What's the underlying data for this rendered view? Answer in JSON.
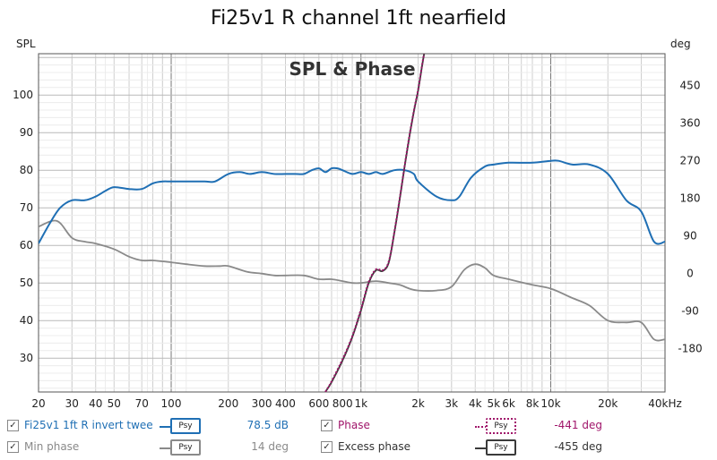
{
  "title": "Fi25v1 R channel 1ft nearfield",
  "chart_data": {
    "type": "line",
    "title": "Fi25v1 R channel 1ft nearfield",
    "subtitle": "SPL & Phase",
    "xscale": "log",
    "xlim": [
      20,
      40000
    ],
    "ylim": [
      21,
      111
    ],
    "y2lim": [
      -283.5,
      526.5
    ],
    "ylabel": "SPL",
    "y2label": "deg",
    "grid": true,
    "x_ticks": [
      {
        "v": 20,
        "label": "20"
      },
      {
        "v": 30,
        "label": "30"
      },
      {
        "v": 40,
        "label": "40"
      },
      {
        "v": 50,
        "label": "50"
      },
      {
        "v": 70,
        "label": "70"
      },
      {
        "v": 100,
        "label": "100"
      },
      {
        "v": 200,
        "label": "200"
      },
      {
        "v": 300,
        "label": "300"
      },
      {
        "v": 400,
        "label": "400"
      },
      {
        "v": 600,
        "label": "600"
      },
      {
        "v": 800,
        "label": "800"
      },
      {
        "v": 1000,
        "label": "1k"
      },
      {
        "v": 2000,
        "label": "2k"
      },
      {
        "v": 3000,
        "label": "3k"
      },
      {
        "v": 4000,
        "label": "4k"
      },
      {
        "v": 5000,
        "label": "5k"
      },
      {
        "v": 6000,
        "label": "6k"
      },
      {
        "v": 8000,
        "label": "8k"
      },
      {
        "v": 10000,
        "label": "10k"
      },
      {
        "v": 20000,
        "label": "20k"
      },
      {
        "v": 40000,
        "label": "40kHz"
      }
    ],
    "y_ticks": [
      30,
      40,
      50,
      60,
      70,
      80,
      90,
      100
    ],
    "y2_ticks": [
      -180,
      -90,
      0,
      90,
      180,
      270,
      360,
      450
    ],
    "series": [
      {
        "name": "Fi25v1 1ft R invert twee",
        "axis": "left",
        "color": "#1f6fb4",
        "x": [
          20,
          23,
          26,
          30,
          35,
          40,
          45,
          50,
          60,
          70,
          80,
          90,
          100,
          120,
          150,
          170,
          200,
          230,
          260,
          300,
          350,
          400,
          450,
          500,
          550,
          600,
          650,
          700,
          750,
          800,
          900,
          1000,
          1100,
          1200,
          1300,
          1500,
          1700,
          1900,
          2000,
          2500,
          3000,
          3300,
          3800,
          4500,
          5000,
          6000,
          8000,
          10000,
          11000,
          13000,
          16000,
          20000,
          25000,
          30000,
          35000,
          40000
        ],
        "y": [
          60.5,
          66,
          70,
          72,
          72,
          73,
          74.5,
          75.5,
          75,
          75,
          76.5,
          77,
          77,
          77,
          77,
          77,
          79,
          79.5,
          79,
          79.5,
          79,
          79,
          79,
          79,
          80,
          80.5,
          79.5,
          80.5,
          80.5,
          80,
          79,
          79.5,
          79,
          79.5,
          79,
          80,
          80,
          79,
          77,
          73,
          72,
          73,
          78,
          81,
          81.5,
          82,
          82,
          82.5,
          82.5,
          81.5,
          81.5,
          79,
          72,
          69,
          61,
          61
        ]
      },
      {
        "name": "Phase",
        "axis": "right",
        "color": "#a0156a",
        "x": [
          650,
          700,
          800,
          900,
          1000,
          1100,
          1200,
          1300,
          1400,
          1500,
          1600,
          1700,
          1800,
          1900,
          2000,
          2100,
          2150
        ],
        "y": [
          -283,
          -258,
          -205,
          -150,
          -85,
          -20,
          10,
          8,
          28,
          100,
          180,
          260,
          330,
          390,
          440,
          500,
          526
        ]
      },
      {
        "name": "Min phase",
        "axis": "left",
        "color": "#8a8a8a",
        "x": [
          20,
          25,
          30,
          35,
          40,
          50,
          60,
          70,
          80,
          100,
          120,
          150,
          180,
          200,
          250,
          300,
          350,
          400,
          500,
          600,
          700,
          800,
          900,
          1000,
          1200,
          1400,
          1600,
          1800,
          2000,
          2500,
          3000,
          3500,
          4000,
          4500,
          5000,
          6000,
          8000,
          10000,
          13000,
          16000,
          20000,
          25000,
          30000,
          35000,
          40000
        ],
        "y": [
          65,
          66.5,
          62,
          61,
          60.5,
          59,
          57,
          56,
          56,
          55.5,
          55,
          54.5,
          54.5,
          54.5,
          53,
          52.5,
          52,
          52,
          52,
          51,
          51,
          50.5,
          50,
          50,
          50.5,
          50,
          49.5,
          48.5,
          48,
          48,
          49,
          53.5,
          55,
          54,
          52,
          51,
          49.5,
          48.5,
          46,
          44,
          40,
          39.5,
          39.5,
          35,
          35
        ]
      },
      {
        "name": "Excess phase",
        "axis": "right",
        "color": "#3a3a3a",
        "x": [
          650,
          700,
          800,
          900,
          1000,
          1100,
          1200,
          1300,
          1400,
          1500,
          1600,
          1700,
          1800,
          1900,
          2000,
          2100,
          2150
        ],
        "y": [
          -283,
          -260,
          -208,
          -152,
          -88,
          -22,
          8,
          6,
          26,
          98,
          178,
          258,
          328,
          388,
          438,
          498,
          526
        ]
      }
    ]
  },
  "legend": [
    {
      "label": "Fi25v1 1ft R invert twee",
      "value": "78.5 dB",
      "color": "#1f6fb4",
      "checked": true,
      "button": "Psy",
      "dotted": false
    },
    {
      "label": "Phase",
      "value": "-441 deg",
      "color": "#a0156a",
      "checked": true,
      "button": "Psy",
      "dotted": true
    },
    {
      "label": "Min phase",
      "value": "14 deg",
      "color": "#8a8a8a",
      "checked": true,
      "button": "Psy",
      "dotted": false
    },
    {
      "label": "Excess phase",
      "value": "-455 deg",
      "color": "#3a3a3a",
      "checked": true,
      "button": "Psy",
      "dotted": false
    }
  ],
  "checkmark": "✓"
}
